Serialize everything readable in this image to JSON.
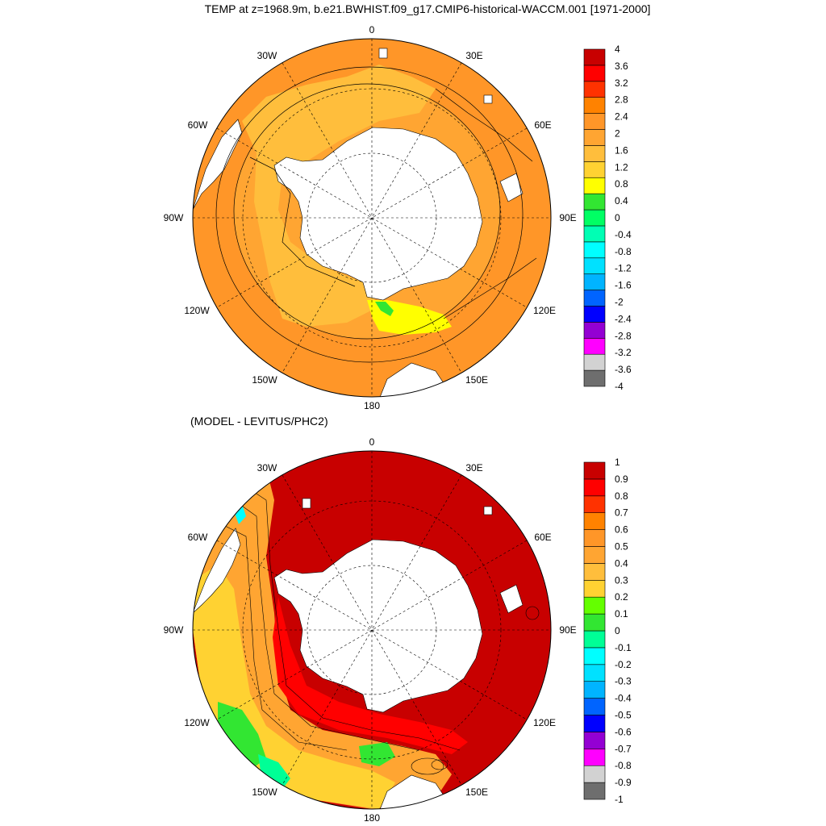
{
  "title": "TEMP at z=1968.9m, b.e21.BWHIST.f09_g17.CMIP6-historical-WACCM.001 [1971-2000]",
  "colors": {
    "temp_scale": [
      "#6e6e6e",
      "#d2d2d2",
      "#ff00ff",
      "#9400d3",
      "#0000ff",
      "#0064ff",
      "#00b4ff",
      "#00e1ff",
      "#00ffff",
      "#00ffb4",
      "#00ff64",
      "#32e632",
      "#ffff00",
      "#ffd232",
      "#ffbe3c",
      "#ffa532",
      "#ff9628",
      "#ff8200",
      "#ff3200",
      "#ff0000",
      "#c80000"
    ],
    "diff_scale": [
      "#6e6e6e",
      "#d2d2d2",
      "#ff00ff",
      "#9400d3",
      "#0000ff",
      "#0064ff",
      "#00b4ff",
      "#00e1ff",
      "#00ffff",
      "#00ff96",
      "#32e632",
      "#64ff00",
      "#ffd232",
      "#ffbe3c",
      "#ffa532",
      "#ff9628",
      "#ff8200",
      "#ff3200",
      "#ff0000",
      "#c80000"
    ],
    "land": "#ffffff",
    "line": "#000000"
  },
  "maps": [
    {
      "subtitle": "",
      "lon_labels": {
        "n": "0",
        "ne": "30E",
        "e1": "60E",
        "e2": "90E",
        "e3": "120E",
        "e4": "150E",
        "s": "180",
        "w4": "150W",
        "w3": "120W",
        "w2": "90W",
        "w1": "60W",
        "nw": "30W"
      },
      "colorbar_labels": [
        "4",
        "3.6",
        "3.2",
        "2.8",
        "2.4",
        "2",
        "1.6",
        "1.2",
        "0.8",
        "0.4",
        "0",
        "-0.4",
        "-0.8",
        "-1.2",
        "-1.6",
        "-2",
        "-2.4",
        "-2.8",
        "-3.2",
        "-3.6",
        "-4"
      ]
    },
    {
      "subtitle": "(MODEL - LEVITUS/PHC2)",
      "lon_labels": {
        "n": "0",
        "ne": "30E",
        "e1": "60E",
        "e2": "90E",
        "e3": "120E",
        "e4": "150E",
        "s": "180",
        "w4": "150W",
        "w3": "120W",
        "w2": "90W",
        "w1": "60W",
        "nw": "30W"
      },
      "colorbar_labels": [
        "1",
        "0.9",
        "0.8",
        "0.7",
        "0.6",
        "0.5",
        "0.4",
        "0.3",
        "0.2",
        "0.1",
        "0",
        "-0.1",
        "-0.2",
        "-0.3",
        "-0.4",
        "-0.5",
        "-0.6",
        "-0.7",
        "-0.8",
        "-0.9",
        "-1"
      ]
    }
  ]
}
